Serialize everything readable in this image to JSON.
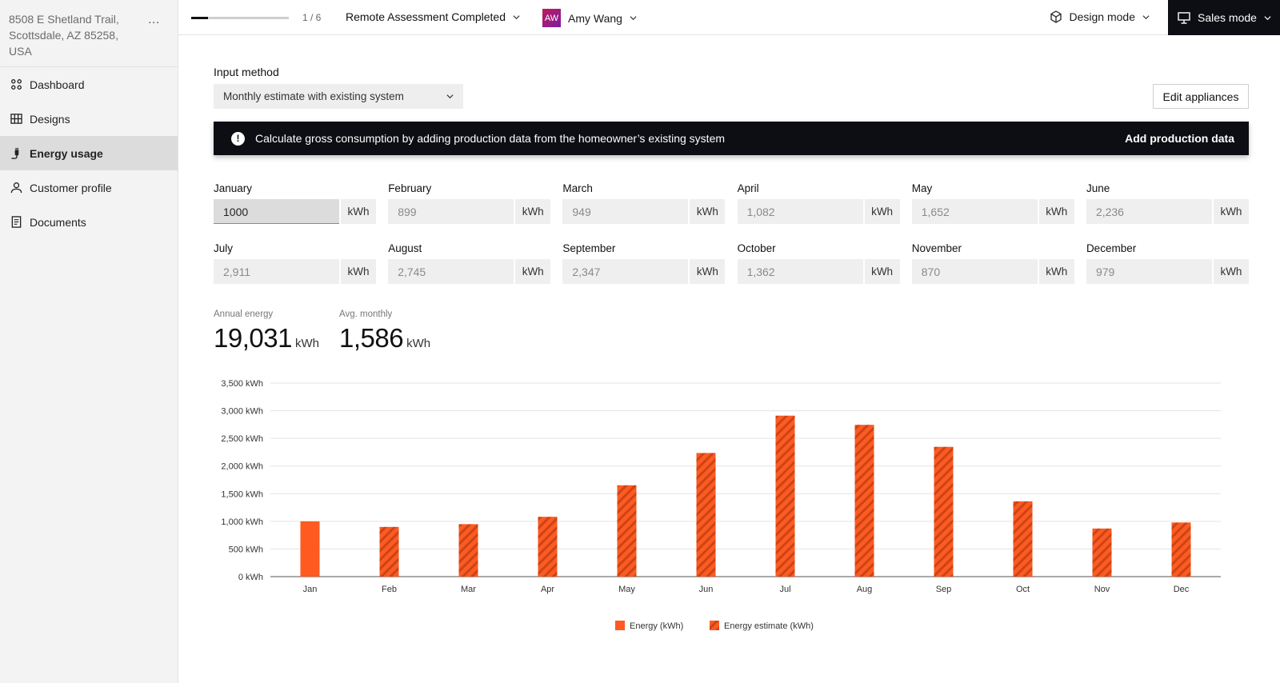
{
  "sidebar": {
    "address_line1": "8508 E Shetland Trail,",
    "address_line2": "Scottsdale, AZ 85258,",
    "address_line3": "USA",
    "more_label": "...",
    "items": [
      {
        "label": "Dashboard",
        "icon": "dashboard-icon",
        "active": false
      },
      {
        "label": "Designs",
        "icon": "grid-icon",
        "active": false
      },
      {
        "label": "Energy usage",
        "icon": "plug-icon",
        "active": true
      },
      {
        "label": "Customer profile",
        "icon": "person-icon",
        "active": false
      },
      {
        "label": "Documents",
        "icon": "document-icon",
        "active": false
      }
    ]
  },
  "topbar": {
    "progress": 0.17,
    "step": "1 / 6",
    "status": "Remote Assessment Completed",
    "user_initials": "AW",
    "user_name": "Amy Wang",
    "design_mode": "Design mode",
    "sales_mode": "Sales mode"
  },
  "form": {
    "input_method_label": "Input method",
    "input_method_value": "Monthly estimate with existing system",
    "edit_appliances": "Edit appliances"
  },
  "banner": {
    "message": "Calculate gross consumption by adding production data from the homeowner’s existing system",
    "action": "Add production data"
  },
  "months": [
    {
      "name": "January",
      "value": "1000",
      "unit": "kWh"
    },
    {
      "name": "February",
      "value": "899",
      "unit": "kWh"
    },
    {
      "name": "March",
      "value": "949",
      "unit": "kWh"
    },
    {
      "name": "April",
      "value": "1,082",
      "unit": "kWh"
    },
    {
      "name": "May",
      "value": "1,652",
      "unit": "kWh"
    },
    {
      "name": "June",
      "value": "2,236",
      "unit": "kWh"
    },
    {
      "name": "July",
      "value": "2,911",
      "unit": "kWh"
    },
    {
      "name": "August",
      "value": "2,745",
      "unit": "kWh"
    },
    {
      "name": "September",
      "value": "2,347",
      "unit": "kWh"
    },
    {
      "name": "October",
      "value": "1,362",
      "unit": "kWh"
    },
    {
      "name": "November",
      "value": "870",
      "unit": "kWh"
    },
    {
      "name": "December",
      "value": "979",
      "unit": "kWh"
    }
  ],
  "stats": {
    "annual_label": "Annual energy",
    "annual_value": "19,031",
    "annual_unit": "kWh",
    "monthly_label": "Avg. monthly",
    "monthly_value": "1,586",
    "monthly_unit": "kWh"
  },
  "colors": {
    "accent": "#ff5a1f",
    "hatch": "#c9451a",
    "dark": "#0d0d14"
  },
  "chart_data": {
    "type": "bar",
    "categories": [
      "Jan",
      "Feb",
      "Mar",
      "Apr",
      "May",
      "Jun",
      "Jul",
      "Aug",
      "Sep",
      "Oct",
      "Nov",
      "Dec"
    ],
    "values": [
      1000,
      899,
      949,
      1082,
      1652,
      2236,
      2911,
      2745,
      2347,
      1362,
      870,
      979
    ],
    "estimated": [
      false,
      true,
      true,
      true,
      true,
      true,
      true,
      true,
      true,
      true,
      true,
      true
    ],
    "yticks": [
      "0 kWh",
      "500 kWh",
      "1,000 kWh",
      "1,500 kWh",
      "2,000 kWh",
      "2,500 kWh",
      "3,000 kWh",
      "3,500 kWh"
    ],
    "ylim": [
      0,
      3500
    ],
    "grid": true,
    "legend_position": "bottom-center",
    "legend": [
      "Energy (kWh)",
      "Energy estimate (kWh)"
    ]
  }
}
